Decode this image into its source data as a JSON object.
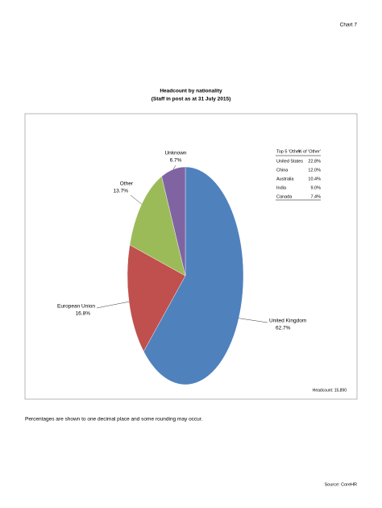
{
  "page_label": "Chart 7",
  "chart_data": {
    "type": "pie",
    "title": "Headcount by nationality",
    "subtitle": "(Staff in post as at 31 July 2015)",
    "categories": [
      "United Kingdom",
      "European Union",
      "Other",
      "Unknown"
    ],
    "values": [
      62.7,
      16.8,
      13.7,
      6.7
    ],
    "value_labels": [
      "62.7%",
      "16.8%",
      "13.7%",
      "6.7%"
    ],
    "colors": [
      "#4f81bd",
      "#c0504d",
      "#9bbb59",
      "#8064a2"
    ]
  },
  "table": {
    "header": [
      "Top 5 'Other'",
      "% of 'Other'"
    ],
    "rows": [
      [
        "United States",
        "22.8%"
      ],
      [
        "China",
        "12.0%"
      ],
      [
        "Australia",
        "10.4%"
      ],
      [
        "India",
        "9.0%"
      ],
      [
        "Canada",
        "7.4%"
      ]
    ]
  },
  "headcount_note": "Headcount: 15,890",
  "footnote": "Percentages are shown to one decimal place and some rounding may occur.",
  "source": "Source: CoreHR"
}
